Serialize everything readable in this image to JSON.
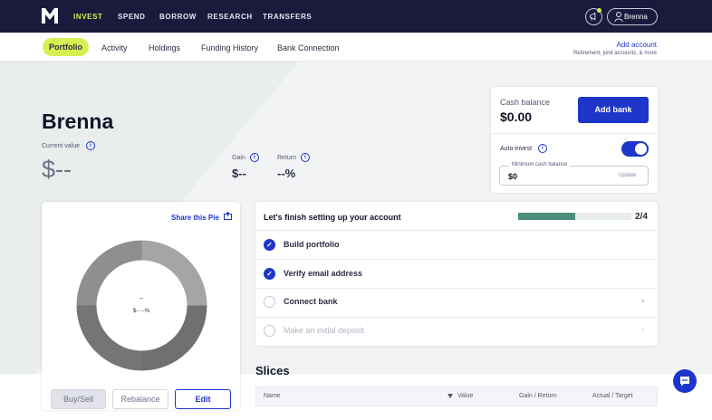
{
  "topnav": {
    "items": [
      "INVEST",
      "SPEND",
      "BORROW",
      "RESEARCH",
      "TRANSFERS"
    ],
    "active": "INVEST",
    "user_name": "Brenna",
    "accent": "#d8ef51",
    "bg": "#1a1a3c"
  },
  "subnav": {
    "tabs": [
      "Portfolio",
      "Activity",
      "Holdings",
      "Funding History",
      "Bank Connection"
    ],
    "active": "Portfolio",
    "add_account": "Add account",
    "add_account_sub": "Retirement, joint accounts, & more"
  },
  "portfolio": {
    "name": "Brenna",
    "current_value_label": "Current value",
    "current_value": "$--",
    "gain_label": "Gain",
    "gain_value": "$--",
    "return_label": "Return",
    "return_value": "--%"
  },
  "cash": {
    "label": "Cash balance",
    "value": "$0.00",
    "add_bank": "Add bank",
    "auto_invest_label": "Auto-invest",
    "auto_invest_on": true,
    "min_cash_label": "Minimum cash balance",
    "min_cash_value": "$0",
    "update": "Update"
  },
  "pie": {
    "share": "Share this Pie",
    "center_line1": "--",
    "center_line2": "$-- --%",
    "buy_sell": "Buy/Sell",
    "rebalance": "Rebalance",
    "edit": "Edit"
  },
  "setup": {
    "title": "Let's finish setting up your account",
    "progress_text": "2/4",
    "progress_fraction": 0.5,
    "steps": [
      {
        "label": "Build portfolio",
        "done": true
      },
      {
        "label": "Verify email address",
        "done": true
      },
      {
        "label": "Connect bank",
        "done": false
      },
      {
        "label": "Make an initial deposit",
        "done": false
      }
    ]
  },
  "slices": {
    "title": "Slices",
    "headers": [
      "Name",
      "Value",
      "Gain / Return",
      "Actual / Target"
    ]
  },
  "icons": {
    "info": "i",
    "check": "✓",
    "chevron": "›"
  },
  "colors": {
    "primary": "#1d35c9",
    "progress": "#4a8f7d"
  }
}
